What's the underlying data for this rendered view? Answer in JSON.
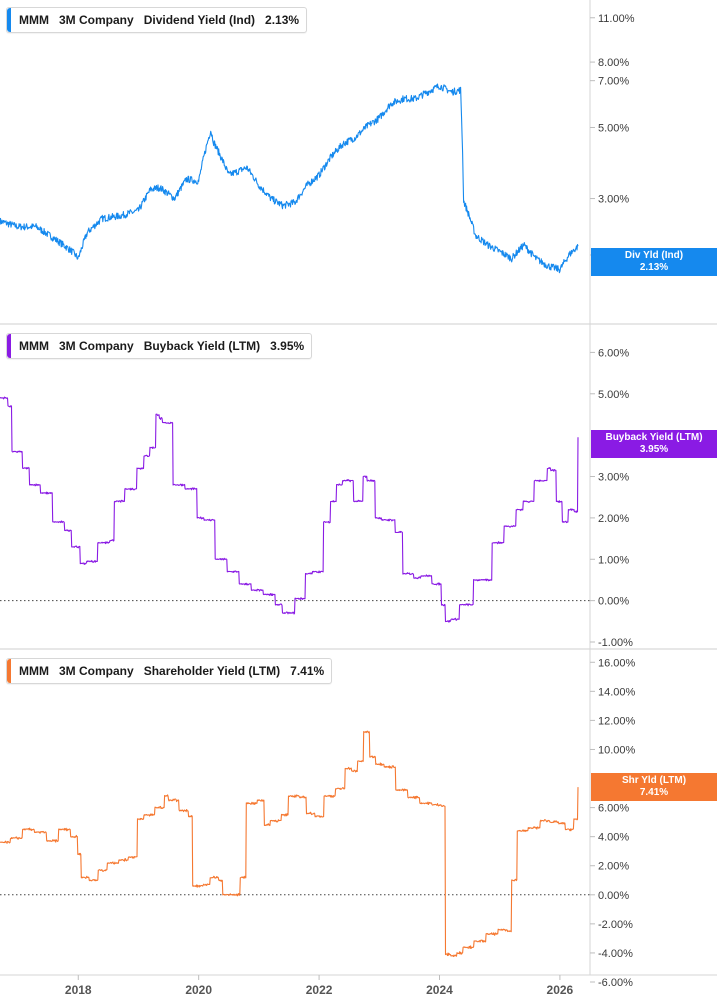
{
  "chart_data": [
    {
      "type": "line",
      "title": "MMM 3M Company Dividend Yield (Ind) 2.13%",
      "legend": {
        "ticker": "MMM",
        "company": "3M Company",
        "metric": "Dividend Yield (Ind)",
        "value": "2.13%"
      },
      "tag": {
        "label": "Div Yld (Ind)",
        "value": "2.13%"
      },
      "color": "#1589ee",
      "scale": "log",
      "ylim": [
        1.5,
        11.8
      ],
      "y_ticks": [
        2,
        3,
        5,
        7,
        8,
        11
      ],
      "y_tick_labels": [
        "2.00%",
        "3.00%",
        "5.00%",
        "7.00%",
        "8.00%",
        "11.00%"
      ],
      "series": [
        {
          "x": [
            2016.7,
            2017.0,
            2017.3,
            2017.6,
            2017.9,
            2018.0,
            2018.15,
            2018.4,
            2018.7,
            2019.0,
            2019.2,
            2019.35,
            2019.6,
            2019.8,
            2020.0,
            2020.2,
            2020.25,
            2020.5,
            2020.8,
            2021.0,
            2021.2,
            2021.4,
            2021.6,
            2021.8,
            2022.0,
            2022.2,
            2022.4,
            2022.6,
            2022.8,
            2023.0,
            2023.2,
            2023.4,
            2023.6,
            2023.8,
            2024.0,
            2024.2,
            2024.35,
            2024.4,
            2024.6,
            2024.8,
            2025.0,
            2025.2,
            2025.4,
            2025.6,
            2025.8,
            2026.0,
            2026.15,
            2026.3
          ],
          "y": [
            2.55,
            2.45,
            2.45,
            2.25,
            2.05,
            1.95,
            2.35,
            2.6,
            2.65,
            2.75,
            3.2,
            3.25,
            3.0,
            3.45,
            3.4,
            4.9,
            4.5,
            3.55,
            3.75,
            3.3,
            3.0,
            2.85,
            2.92,
            3.3,
            3.55,
            4.05,
            4.45,
            4.65,
            5.05,
            5.35,
            5.95,
            6.15,
            6.15,
            6.45,
            6.75,
            6.45,
            6.55,
            2.95,
            2.3,
            2.15,
            2.05,
            1.95,
            2.15,
            1.95,
            1.85,
            1.8,
            2.0,
            2.13
          ]
        }
      ]
    },
    {
      "type": "line",
      "title": "MMM 3M Company Buyback Yield (LTM) 3.95%",
      "legend": {
        "ticker": "MMM",
        "company": "3M Company",
        "metric": "Buyback Yield (LTM)",
        "value": "3.95%"
      },
      "tag": {
        "label": "Buyback Yield (LTM)",
        "value": "3.95%"
      },
      "color": "#8a1be4",
      "ylim": [
        -1.0,
        6.3
      ],
      "y_ticks": [
        -1,
        0,
        1,
        2,
        3,
        5,
        6
      ],
      "y_tick_labels": [
        "-1.00%",
        "0.00%",
        "1.00%",
        "2.00%",
        "3.00%",
        "5.00%",
        "6.00%"
      ],
      "zero_line": true,
      "series": [
        {
          "x": [
            2016.7,
            2016.85,
            2016.9,
            2017.1,
            2017.2,
            2017.4,
            2017.6,
            2017.8,
            2017.9,
            2018.05,
            2018.15,
            2018.35,
            2018.55,
            2018.6,
            2018.8,
            2019.0,
            2019.1,
            2019.2,
            2019.3,
            2019.35,
            2019.4,
            2019.6,
            2019.8,
            2020.0,
            2020.1,
            2020.3,
            2020.5,
            2020.7,
            2020.9,
            2021.1,
            2021.3,
            2021.4,
            2021.55,
            2021.6,
            2021.8,
            2021.9,
            2022.1,
            2022.2,
            2022.3,
            2022.4,
            2022.6,
            2022.75,
            2022.8,
            2022.95,
            2023.05,
            2023.3,
            2023.4,
            2023.6,
            2023.7,
            2023.9,
            2024.05,
            2024.1,
            2024.2,
            2024.35,
            2024.6,
            2024.7,
            2024.9,
            2025.1,
            2025.3,
            2025.4,
            2025.6,
            2025.7,
            2025.8,
            2025.85,
            2025.95,
            2026.05,
            2026.15,
            2026.25,
            2026.3
          ],
          "y": [
            4.9,
            4.7,
            3.6,
            3.2,
            2.8,
            2.6,
            1.9,
            1.7,
            1.3,
            0.9,
            0.95,
            1.4,
            1.45,
            2.4,
            2.7,
            3.2,
            3.5,
            3.7,
            4.5,
            4.4,
            4.3,
            2.8,
            2.7,
            2.0,
            1.95,
            1.0,
            0.7,
            0.4,
            0.25,
            0.15,
            -0.1,
            -0.3,
            -0.3,
            0.05,
            0.65,
            0.7,
            1.9,
            2.4,
            2.8,
            2.9,
            2.4,
            3.0,
            2.9,
            2.0,
            1.95,
            1.65,
            0.65,
            0.55,
            0.6,
            0.4,
            -0.1,
            -0.5,
            -0.45,
            -0.1,
            0.5,
            0.5,
            1.4,
            1.8,
            2.2,
            2.4,
            2.9,
            2.9,
            3.2,
            3.15,
            2.4,
            1.9,
            2.2,
            2.15,
            3.95
          ]
        }
      ]
    },
    {
      "type": "line",
      "title": "MMM 3M Company Shareholder Yield (LTM) 7.41%",
      "legend": {
        "ticker": "MMM",
        "company": "3M Company",
        "metric": "Shareholder Yield (LTM)",
        "value": "7.41%"
      },
      "tag": {
        "label": "Shr Yld (LTM)",
        "value": "7.41%"
      },
      "color": "#f57831",
      "ylim": [
        -6.0,
        16.5
      ],
      "y_ticks": [
        -6,
        -4,
        -2,
        0,
        2,
        4,
        6,
        10,
        12,
        14,
        16
      ],
      "y_tick_labels": [
        "-6.00%",
        "-4.00%",
        "-2.00%",
        "0.00%",
        "2.00%",
        "4.00%",
        "6.00%",
        "10.00%",
        "12.00%",
        "14.00%",
        "16.00%"
      ],
      "zero_line": true,
      "series": [
        {
          "x": [
            2016.7,
            2016.9,
            2017.1,
            2017.3,
            2017.5,
            2017.7,
            2017.9,
            2018.0,
            2018.05,
            2018.2,
            2018.35,
            2018.5,
            2018.7,
            2018.85,
            2019.0,
            2019.1,
            2019.3,
            2019.45,
            2019.5,
            2019.7,
            2019.85,
            2019.9,
            2020.1,
            2020.2,
            2020.35,
            2020.4,
            2020.6,
            2020.7,
            2020.8,
            2021.0,
            2021.1,
            2021.2,
            2021.4,
            2021.5,
            2021.7,
            2021.8,
            2021.95,
            2022.1,
            2022.3,
            2022.45,
            2022.55,
            2022.65,
            2022.75,
            2022.85,
            2022.95,
            2023.1,
            2023.3,
            2023.5,
            2023.7,
            2023.9,
            2024.05,
            2024.1,
            2024.2,
            2024.3,
            2024.4,
            2024.6,
            2024.8,
            2025.0,
            2025.15,
            2025.2,
            2025.3,
            2025.5,
            2025.7,
            2025.85,
            2026.0,
            2026.1,
            2026.25,
            2026.3
          ],
          "y": [
            3.6,
            3.9,
            4.5,
            4.3,
            3.7,
            4.5,
            4.0,
            2.8,
            1.2,
            1.0,
            1.7,
            2.2,
            2.4,
            2.6,
            5.2,
            5.5,
            6.0,
            6.8,
            6.5,
            5.8,
            5.4,
            0.6,
            0.7,
            1.2,
            1.0,
            0.0,
            0.0,
            1.2,
            6.3,
            6.5,
            4.8,
            5.1,
            5.5,
            6.8,
            6.7,
            5.6,
            5.4,
            6.8,
            7.3,
            8.7,
            8.5,
            9.2,
            11.2,
            9.5,
            9.0,
            8.8,
            7.2,
            6.7,
            6.3,
            6.2,
            6.1,
            -4.1,
            -4.2,
            -4.0,
            -3.6,
            -3.2,
            -2.7,
            -2.4,
            -2.5,
            1.0,
            4.4,
            4.6,
            5.1,
            5.0,
            4.9,
            4.5,
            5.2,
            7.41
          ]
        }
      ]
    }
  ],
  "x_axis": {
    "range": [
      2016.7,
      2026.5
    ],
    "ticks": [
      2018,
      2020,
      2022,
      2024,
      2026
    ],
    "tick_labels": [
      "2018",
      "2020",
      "2022",
      "2024",
      "2026"
    ]
  }
}
